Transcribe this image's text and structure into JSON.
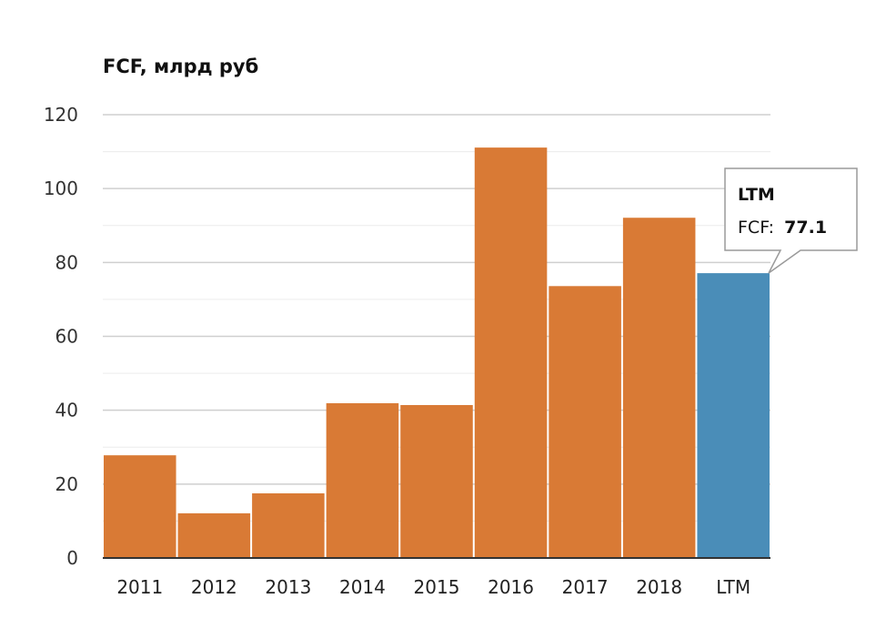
{
  "chart_data": {
    "type": "bar",
    "title": "FCF, млрд руб",
    "categories": [
      "2011",
      "2012",
      "2013",
      "2014",
      "2015",
      "2016",
      "2017",
      "2018",
      "LTM"
    ],
    "values": [
      27.8,
      12.1,
      17.5,
      41.9,
      41.4,
      111.1,
      73.6,
      92.1,
      77.1
    ],
    "ylim": [
      0,
      120
    ],
    "yticks": [
      0,
      20,
      40,
      60,
      80,
      100,
      120
    ],
    "grid": true,
    "colors": {
      "default": "#D97A35",
      "highlight": "#4A8DB8"
    },
    "highlight_index": 8,
    "tooltip": {
      "title": "LTM",
      "label": "FCF:",
      "value": "77.1"
    }
  }
}
